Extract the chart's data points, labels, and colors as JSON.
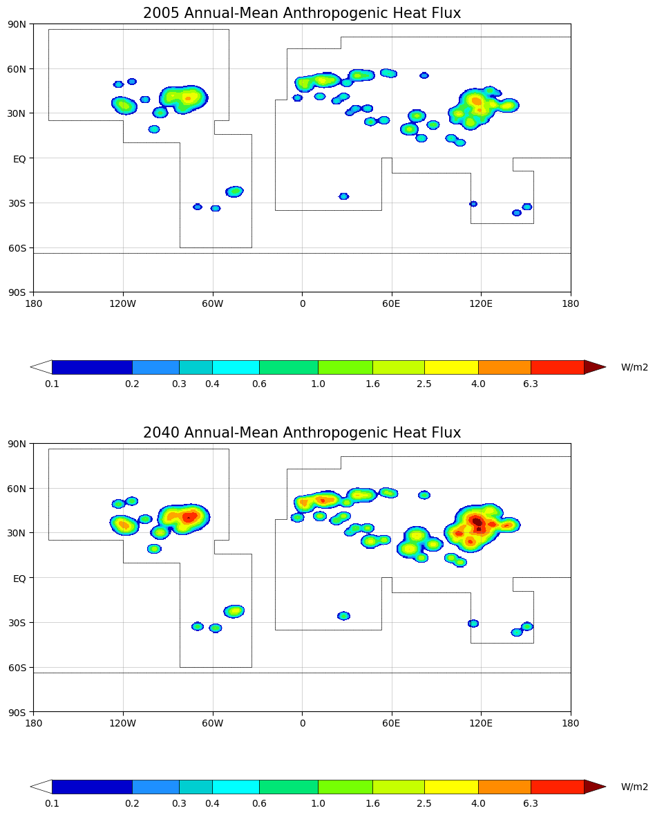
{
  "title1": "2005 Annual-Mean Anthropogenic Heat Flux",
  "title2": "2040 Annual-Mean Anthropogenic Heat Flux",
  "colorbar_tick_labels": [
    "0.1",
    "0.2",
    "0.3",
    "0.4",
    "0.6",
    "1.0",
    "1.6",
    "2.5",
    "4.0",
    "6.3"
  ],
  "colorbar_tick_positions": [
    0.1,
    0.2,
    0.3,
    0.4,
    0.6,
    1.0,
    1.6,
    2.5,
    4.0,
    6.3
  ],
  "cb_boundaries": [
    0.1,
    0.2,
    0.3,
    0.4,
    0.6,
    1.0,
    1.6,
    2.5,
    4.0,
    6.3,
    10.0
  ],
  "unit_label": "W/m2",
  "cb_colors": [
    "#0000cd",
    "#1e90ff",
    "#00ced1",
    "#00ffff",
    "#00e676",
    "#76ff03",
    "#c6ff00",
    "#ffff00",
    "#ff8c00",
    "#ff2200"
  ],
  "lon_ticks": [
    -180,
    -120,
    -60,
    0,
    60,
    120,
    180
  ],
  "lon_labels": [
    "180",
    "120W",
    "60W",
    "0",
    "60E",
    "120E",
    "180"
  ],
  "lat_ticks": [
    -90,
    -60,
    -30,
    0,
    30,
    60,
    90
  ],
  "lat_labels": [
    "90S",
    "60S",
    "30S",
    "EQ",
    "30N",
    "60N",
    "90N"
  ],
  "background_color": "#ffffff",
  "title_fontsize": 15,
  "tick_fontsize": 10,
  "colorbar_label_fontsize": 10,
  "cities_2005": [
    [
      -75,
      40,
      7,
      2.0
    ],
    [
      -87,
      42,
      5,
      1.5
    ],
    [
      -80,
      33,
      4,
      0.8
    ],
    [
      -118,
      34,
      5,
      1.2
    ],
    [
      -122,
      37,
      4,
      0.8
    ],
    [
      -95,
      30,
      4,
      0.7
    ],
    [
      -90,
      38,
      4,
      0.7
    ],
    [
      -77,
      39,
      3,
      1.0
    ],
    [
      -71,
      42,
      3,
      0.8
    ],
    [
      -105,
      39,
      3,
      0.4
    ],
    [
      -79,
      43,
      3,
      0.6
    ],
    [
      -73,
      45,
      3,
      0.4
    ],
    [
      -123,
      49,
      3,
      0.4
    ],
    [
      -114,
      51,
      3,
      0.3
    ],
    [
      -99,
      19,
      3,
      0.6
    ],
    [
      2,
      48,
      4,
      1.2
    ],
    [
      13,
      52,
      4,
      1.2
    ],
    [
      -0.1,
      51,
      3,
      1.2
    ],
    [
      4.9,
      52,
      3,
      0.8
    ],
    [
      18,
      52,
      5,
      0.8
    ],
    [
      37,
      55,
      4,
      1.2
    ],
    [
      30,
      50,
      3,
      0.6
    ],
    [
      28,
      41,
      3,
      0.6
    ],
    [
      12,
      41,
      3,
      0.6
    ],
    [
      23,
      38,
      3,
      0.4
    ],
    [
      -3,
      40,
      3,
      0.4
    ],
    [
      10,
      53,
      3,
      0.6
    ],
    [
      14,
      50,
      3,
      0.6
    ],
    [
      21,
      52,
      3,
      0.6
    ],
    [
      44,
      55,
      4,
      0.6
    ],
    [
      56,
      57,
      3,
      0.5
    ],
    [
      60,
      56,
      3,
      0.5
    ],
    [
      82,
      55,
      3,
      0.3
    ],
    [
      131,
      43,
      3,
      0.3
    ],
    [
      116,
      39,
      6,
      2.5
    ],
    [
      121,
      31,
      5,
      2.0
    ],
    [
      113,
      23,
      4,
      1.5
    ],
    [
      104,
      30,
      4,
      1.2
    ],
    [
      126,
      45,
      3,
      0.8
    ],
    [
      139,
      35,
      4,
      1.8
    ],
    [
      135,
      34,
      3,
      1.2
    ],
    [
      129,
      35,
      3,
      1.0
    ],
    [
      106,
      29,
      3,
      1.0
    ],
    [
      118,
      32,
      3,
      1.0
    ],
    [
      108,
      34,
      3,
      0.8
    ],
    [
      120,
      36,
      3,
      0.8
    ],
    [
      117,
      37,
      4,
      1.2
    ],
    [
      114,
      30,
      3,
      0.8
    ],
    [
      112,
      26,
      3,
      0.6
    ],
    [
      103,
      25,
      3,
      0.6
    ],
    [
      127,
      37,
      3,
      1.2
    ],
    [
      128,
      35,
      3,
      0.8
    ],
    [
      121,
      25,
      3,
      0.6
    ],
    [
      72,
      19,
      4,
      1.2
    ],
    [
      77,
      28,
      4,
      1.2
    ],
    [
      88,
      22,
      3,
      1.0
    ],
    [
      80,
      13,
      3,
      0.6
    ],
    [
      100,
      13,
      3,
      0.6
    ],
    [
      106,
      10,
      3,
      0.6
    ],
    [
      46,
      24,
      3,
      0.8
    ],
    [
      55,
      25,
      3,
      0.6
    ],
    [
      44,
      33,
      3,
      0.5
    ],
    [
      36,
      33,
      3,
      0.4
    ],
    [
      151,
      -33,
      3,
      0.4
    ],
    [
      144,
      -37,
      3,
      0.3
    ],
    [
      115,
      -31,
      3,
      0.25
    ],
    [
      -46,
      -23,
      4,
      0.6
    ],
    [
      -43,
      -22,
      3,
      0.5
    ],
    [
      -58,
      -34,
      3,
      0.4
    ],
    [
      -70,
      -33,
      3,
      0.3
    ],
    [
      28,
      -26,
      3,
      0.4
    ],
    [
      32,
      30,
      3,
      0.3
    ]
  ],
  "cities_2040": [
    [
      -75,
      40,
      7,
      4.0
    ],
    [
      -87,
      42,
      5,
      3.0
    ],
    [
      -80,
      33,
      4,
      2.0
    ],
    [
      -118,
      34,
      5,
      3.0
    ],
    [
      -122,
      37,
      4,
      2.0
    ],
    [
      -95,
      30,
      4,
      1.8
    ],
    [
      -90,
      38,
      4,
      1.8
    ],
    [
      -77,
      39,
      4,
      2.5
    ],
    [
      -71,
      42,
      4,
      2.0
    ],
    [
      -105,
      39,
      3,
      1.0
    ],
    [
      -79,
      43,
      3,
      1.5
    ],
    [
      -73,
      45,
      3,
      1.0
    ],
    [
      -123,
      49,
      3,
      1.0
    ],
    [
      -114,
      51,
      3,
      0.8
    ],
    [
      -99,
      19,
      3,
      1.5
    ],
    [
      2,
      48,
      4,
      2.5
    ],
    [
      13,
      52,
      4,
      2.5
    ],
    [
      -0.1,
      51,
      3,
      2.5
    ],
    [
      4.9,
      52,
      3,
      2.0
    ],
    [
      18,
      52,
      5,
      2.0
    ],
    [
      37,
      55,
      4,
      2.5
    ],
    [
      30,
      50,
      3,
      1.5
    ],
    [
      28,
      41,
      3,
      1.5
    ],
    [
      12,
      41,
      3,
      1.5
    ],
    [
      23,
      38,
      3,
      1.0
    ],
    [
      -3,
      40,
      3,
      1.0
    ],
    [
      10,
      53,
      3,
      1.5
    ],
    [
      14,
      50,
      3,
      1.5
    ],
    [
      21,
      52,
      3,
      1.5
    ],
    [
      44,
      55,
      4,
      1.5
    ],
    [
      56,
      57,
      3,
      1.0
    ],
    [
      60,
      56,
      3,
      1.0
    ],
    [
      82,
      55,
      3,
      0.8
    ],
    [
      131,
      43,
      3,
      0.8
    ],
    [
      116,
      39,
      7,
      5.0
    ],
    [
      121,
      31,
      6,
      4.5
    ],
    [
      113,
      23,
      5,
      4.0
    ],
    [
      104,
      30,
      5,
      3.5
    ],
    [
      126,
      45,
      4,
      2.0
    ],
    [
      139,
      35,
      4,
      3.5
    ],
    [
      135,
      34,
      3,
      2.5
    ],
    [
      129,
      35,
      3,
      2.0
    ],
    [
      106,
      29,
      3,
      2.5
    ],
    [
      118,
      32,
      3,
      2.5
    ],
    [
      108,
      34,
      3,
      2.0
    ],
    [
      120,
      36,
      3,
      2.0
    ],
    [
      117,
      37,
      4,
      3.0
    ],
    [
      114,
      30,
      3,
      2.0
    ],
    [
      112,
      26,
      3,
      1.5
    ],
    [
      103,
      25,
      3,
      1.5
    ],
    [
      127,
      37,
      4,
      2.5
    ],
    [
      128,
      35,
      3,
      2.0
    ],
    [
      121,
      25,
      3,
      1.5
    ],
    [
      72,
      19,
      5,
      2.5
    ],
    [
      77,
      28,
      5,
      2.5
    ],
    [
      88,
      22,
      4,
      2.0
    ],
    [
      80,
      13,
      3,
      1.5
    ],
    [
      100,
      13,
      3,
      1.5
    ],
    [
      106,
      10,
      3,
      1.5
    ],
    [
      46,
      24,
      4,
      2.0
    ],
    [
      55,
      25,
      3,
      1.5
    ],
    [
      44,
      33,
      3,
      1.2
    ],
    [
      36,
      33,
      3,
      1.0
    ],
    [
      151,
      -33,
      3,
      0.8
    ],
    [
      144,
      -37,
      3,
      0.6
    ],
    [
      115,
      -31,
      3,
      0.5
    ],
    [
      -46,
      -23,
      4,
      1.5
    ],
    [
      -43,
      -22,
      3,
      1.2
    ],
    [
      -58,
      -34,
      3,
      1.0
    ],
    [
      -70,
      -33,
      3,
      0.8
    ],
    [
      28,
      -26,
      3,
      0.8
    ],
    [
      32,
      30,
      3,
      0.6
    ]
  ]
}
